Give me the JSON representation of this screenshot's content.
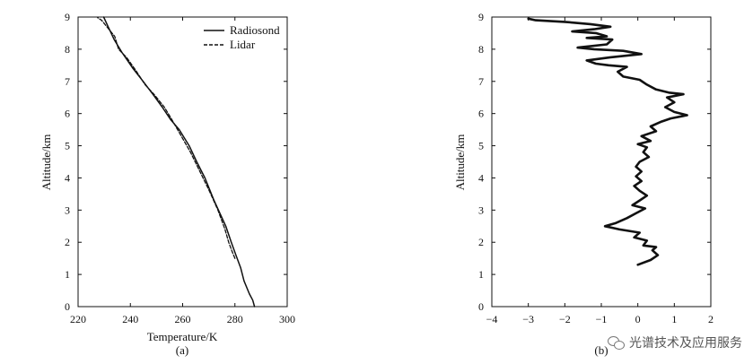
{
  "chart_data": [
    {
      "type": "line",
      "sublabel": "(a)",
      "xlabel": "Temperature/K",
      "ylabel": "Altitude/km",
      "xlim": [
        220,
        300
      ],
      "ylim": [
        0,
        9
      ],
      "xticks": [
        "220",
        "240",
        "260",
        "280",
        "300"
      ],
      "yticks": [
        "0",
        "1",
        "2",
        "3",
        "4",
        "5",
        "6",
        "7",
        "8",
        "9"
      ],
      "legend_position": "top-right",
      "series": [
        {
          "name": "Radiosond",
          "style": "solid",
          "points": [
            [
              287.5,
              0
            ],
            [
              286.8,
              0.2
            ],
            [
              285.5,
              0.4
            ],
            [
              283.5,
              0.8
            ],
            [
              282.2,
              1.2
            ],
            [
              280.4,
              1.6
            ],
            [
              278.6,
              2.0
            ],
            [
              276.5,
              2.5
            ],
            [
              272.0,
              3.3
            ],
            [
              268.5,
              4.0
            ],
            [
              265.4,
              4.5
            ],
            [
              262.5,
              5.0
            ],
            [
              258.7,
              5.5
            ],
            [
              255.5,
              5.8
            ],
            [
              252.2,
              6.2
            ],
            [
              248.6,
              6.6
            ],
            [
              244.9,
              7.0
            ],
            [
              241.0,
              7.4
            ],
            [
              236.8,
              7.9
            ],
            [
              233.8,
              8.3
            ],
            [
              231.5,
              8.7
            ],
            [
              229.8,
              9.0
            ]
          ]
        },
        {
          "name": "Lidar",
          "style": "dashed",
          "points": [
            [
              280.0,
              1.5
            ],
            [
              279.0,
              1.7
            ],
            [
              277.6,
              2.0
            ],
            [
              276.2,
              2.4
            ],
            [
              273.5,
              3.0
            ],
            [
              270.2,
              3.6
            ],
            [
              266.0,
              4.3
            ],
            [
              263.0,
              4.8
            ],
            [
              259.5,
              5.3
            ],
            [
              255.6,
              5.85
            ],
            [
              253.0,
              6.2
            ],
            [
              249.0,
              6.6
            ],
            [
              245.6,
              6.9
            ],
            [
              242.0,
              7.35
            ],
            [
              238.5,
              7.75
            ],
            [
              235.5,
              8.0
            ],
            [
              234.0,
              8.4
            ],
            [
              232.0,
              8.6
            ],
            [
              230.5,
              8.75
            ],
            [
              229.0,
              8.9
            ],
            [
              227.5,
              8.98
            ]
          ]
        }
      ]
    },
    {
      "type": "line",
      "sublabel": "(b)",
      "xlabel": "",
      "ylabel": "Altitude/km",
      "xlim": [
        -4,
        2
      ],
      "ylim": [
        0,
        9
      ],
      "xticks": [
        "−4",
        "−3",
        "−2",
        "−1",
        "0",
        "1",
        "2"
      ],
      "yticks": [
        "0",
        "1",
        "2",
        "3",
        "4",
        "5",
        "6",
        "7",
        "8",
        "9"
      ],
      "series": [
        {
          "style": "solid-thick",
          "points": [
            [
              0,
              1.3
            ],
            [
              0.35,
              1.45
            ],
            [
              0.55,
              1.6
            ],
            [
              0.4,
              1.75
            ],
            [
              0.5,
              1.85
            ],
            [
              0.15,
              1.9
            ],
            [
              0.25,
              2.05
            ],
            [
              -0.1,
              2.15
            ],
            [
              0.05,
              2.3
            ],
            [
              -0.5,
              2.4
            ],
            [
              -0.9,
              2.5
            ],
            [
              -0.6,
              2.6
            ],
            [
              -0.3,
              2.75
            ],
            [
              -0.05,
              2.9
            ],
            [
              0.2,
              3.05
            ],
            [
              -0.15,
              3.15
            ],
            [
              0.05,
              3.3
            ],
            [
              0.25,
              3.45
            ],
            [
              0.05,
              3.6
            ],
            [
              -0.1,
              3.75
            ],
            [
              0.1,
              3.9
            ],
            [
              -0.05,
              4.05
            ],
            [
              0.1,
              4.2
            ],
            [
              -0.05,
              4.35
            ],
            [
              0.05,
              4.5
            ],
            [
              0.3,
              4.65
            ],
            [
              0.15,
              4.8
            ],
            [
              0.25,
              4.95
            ],
            [
              0,
              5.05
            ],
            [
              0.35,
              5.15
            ],
            [
              0.1,
              5.3
            ],
            [
              0.5,
              5.45
            ],
            [
              0.35,
              5.6
            ],
            [
              0.65,
              5.75
            ],
            [
              0.9,
              5.85
            ],
            [
              1.35,
              5.95
            ],
            [
              1.0,
              6.05
            ],
            [
              0.75,
              6.2
            ],
            [
              1.0,
              6.35
            ],
            [
              0.8,
              6.5
            ],
            [
              1.25,
              6.6
            ],
            [
              0.85,
              6.65
            ],
            [
              0.5,
              6.75
            ],
            [
              0.25,
              6.9
            ],
            [
              0.05,
              7.05
            ],
            [
              -0.4,
              7.15
            ],
            [
              -0.55,
              7.3
            ],
            [
              -0.3,
              7.45
            ],
            [
              -0.8,
              7.5
            ],
            [
              -1.15,
              7.55
            ],
            [
              -1.4,
              7.65
            ],
            [
              -0.75,
              7.75
            ],
            [
              0.1,
              7.85
            ],
            [
              -0.4,
              7.95
            ],
            [
              -1.2,
              8.0
            ],
            [
              -1.65,
              8.05
            ],
            [
              -0.85,
              8.15
            ],
            [
              -0.7,
              8.3
            ],
            [
              -1.4,
              8.35
            ],
            [
              -0.85,
              8.4
            ],
            [
              -1.15,
              8.5
            ],
            [
              -1.8,
              8.55
            ],
            [
              -1.2,
              8.62
            ],
            [
              -0.75,
              8.7
            ],
            [
              -1.3,
              8.78
            ],
            [
              -2.0,
              8.85
            ],
            [
              -2.8,
              8.9
            ],
            [
              -3.0,
              8.95
            ]
          ]
        }
      ]
    }
  ],
  "watermark": {
    "text": "光谱技术及应用服务",
    "icon": "wechat-icon"
  }
}
